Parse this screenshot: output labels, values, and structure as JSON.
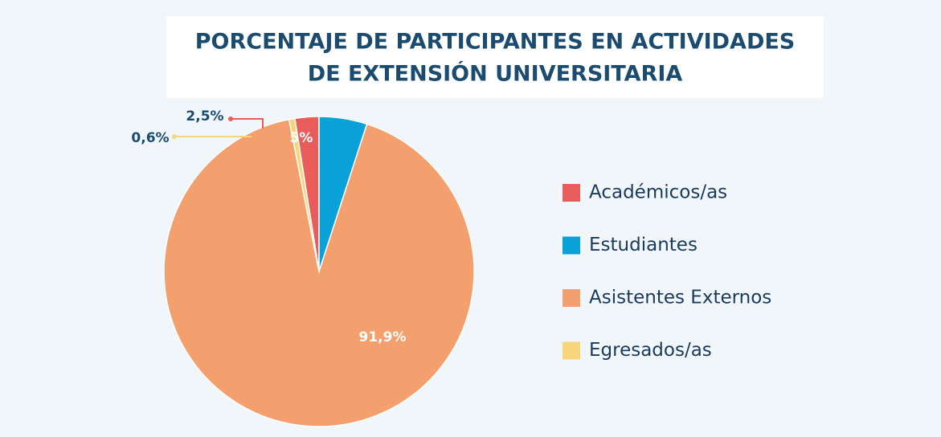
{
  "chart_data": {
    "type": "pie",
    "title": [
      "PORCENTAJE DE PARTICIPANTES EN ACTIVIDADES",
      "DE EXTENSIÓN UNIVERSITARIA"
    ],
    "categories": [
      "Académicos/as",
      "Estudiantes",
      "Asistentes Externos",
      "Egresados/as"
    ],
    "values": [
      2.5,
      5,
      91.9,
      0.6
    ],
    "value_labels": [
      "2,5%",
      "5%",
      "91,9%",
      "0,6%"
    ],
    "colors": [
      "#e85c5c",
      "#0aa0d8",
      "#f4a06e",
      "#f7d57a"
    ],
    "legend": "right"
  }
}
